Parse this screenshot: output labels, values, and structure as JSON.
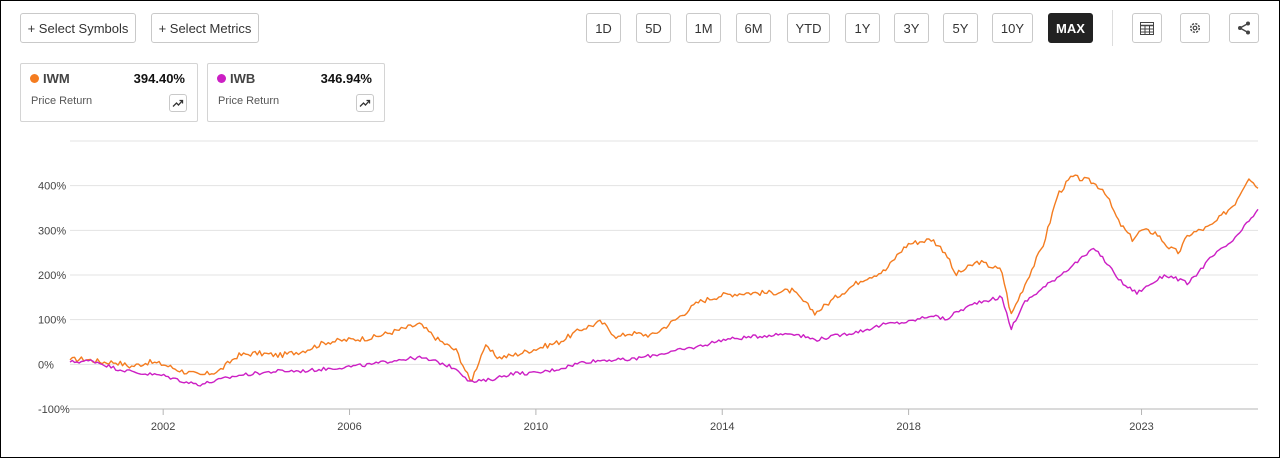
{
  "toolbar": {
    "select_symbols": "+ Select Symbols",
    "select_metrics": "+ Select Metrics",
    "ranges": [
      "1D",
      "5D",
      "1M",
      "6M",
      "YTD",
      "1Y",
      "3Y",
      "5Y",
      "10Y",
      "MAX"
    ],
    "active_range": "MAX",
    "icons": [
      "table-icon",
      "gear-icon",
      "share-icon"
    ]
  },
  "cards": [
    {
      "symbol": "IWM",
      "value": "394.40%",
      "metric": "Price Return",
      "color": "#f47c20"
    },
    {
      "symbol": "IWB",
      "value": "346.94%",
      "metric": "Price Return",
      "color": "#cc1fc4"
    }
  ],
  "chart_data": {
    "type": "line",
    "xlim": [
      2000.0,
      2025.5
    ],
    "ylim": [
      -100,
      500
    ],
    "x_ticks": [
      2002,
      2006,
      2010,
      2014,
      2018,
      2023
    ],
    "x_tick_labels": [
      "2002",
      "2006",
      "2010",
      "2014",
      "2018",
      "2023"
    ],
    "y_ticks": [
      -100,
      0,
      100,
      200,
      300,
      400
    ],
    "y_tick_labels": [
      "-100%",
      "0%",
      "100%",
      "200%",
      "300%",
      "400%"
    ],
    "grid": "horizontal",
    "series": [
      {
        "name": "IWM",
        "color": "#f47c20",
        "x": [
          2000.0,
          2000.3,
          2000.7,
          2001.0,
          2001.3,
          2001.7,
          2002.0,
          2002.4,
          2002.8,
          2003.2,
          2003.6,
          2004.0,
          2004.5,
          2005.0,
          2005.5,
          2006.0,
          2006.5,
          2007.0,
          2007.5,
          2007.9,
          2008.3,
          2008.6,
          2008.9,
          2009.2,
          2009.5,
          2010.0,
          2010.5,
          2011.0,
          2011.4,
          2011.75,
          2012.0,
          2012.5,
          2013.0,
          2013.5,
          2014.0,
          2014.5,
          2015.0,
          2015.5,
          2016.0,
          2016.5,
          2017.0,
          2017.5,
          2017.8,
          2018.0,
          2018.5,
          2018.8,
          2019.0,
          2019.5,
          2020.0,
          2020.2,
          2020.5,
          2020.9,
          2021.2,
          2021.5,
          2021.9,
          2022.2,
          2022.5,
          2022.8,
          2023.0,
          2023.3,
          2023.6,
          2023.8,
          2024.0,
          2024.5,
          2025.0,
          2025.3,
          2025.5
        ],
        "values": [
          10,
          12,
          5,
          5,
          -5,
          5,
          0,
          -15,
          -25,
          -15,
          20,
          25,
          20,
          30,
          50,
          55,
          60,
          75,
          90,
          55,
          30,
          -40,
          40,
          15,
          20,
          35,
          50,
          80,
          95,
          60,
          70,
          65,
          100,
          140,
          155,
          160,
          160,
          165,
          115,
          155,
          190,
          210,
          250,
          270,
          280,
          250,
          200,
          230,
          210,
          110,
          180,
          270,
          380,
          420,
          410,
          390,
          320,
          280,
          300,
          295,
          260,
          250,
          290,
          310,
          360,
          420,
          394
        ]
      },
      {
        "name": "IWB",
        "color": "#cc1fc4",
        "x": [
          2000.0,
          2000.5,
          2001.0,
          2001.5,
          2002.0,
          2002.5,
          2002.8,
          2003.2,
          2003.6,
          2004.0,
          2004.5,
          2005.0,
          2005.5,
          2006.0,
          2006.5,
          2007.0,
          2007.5,
          2007.9,
          2008.3,
          2008.6,
          2009.0,
          2009.5,
          2010.0,
          2010.5,
          2011.0,
          2011.5,
          2012.0,
          2012.5,
          2013.0,
          2013.5,
          2014.0,
          2014.5,
          2015.0,
          2015.5,
          2016.0,
          2016.5,
          2017.0,
          2017.5,
          2018.0,
          2018.5,
          2018.8,
          2019.0,
          2019.5,
          2020.0,
          2020.2,
          2020.5,
          2021.0,
          2021.5,
          2022.0,
          2022.3,
          2022.6,
          2022.9,
          2023.2,
          2023.5,
          2023.8,
          2024.0,
          2024.5,
          2025.0,
          2025.3,
          2025.5
        ],
        "values": [
          5,
          8,
          -10,
          -20,
          -25,
          -40,
          -45,
          -35,
          -25,
          -20,
          -15,
          -15,
          -10,
          -5,
          0,
          10,
          15,
          5,
          -10,
          -40,
          -35,
          -20,
          -20,
          -10,
          5,
          10,
          10,
          20,
          30,
          40,
          55,
          60,
          65,
          70,
          55,
          65,
          75,
          90,
          95,
          110,
          100,
          115,
          140,
          150,
          80,
          140,
          180,
          220,
          260,
          220,
          180,
          160,
          180,
          200,
          190,
          180,
          240,
          280,
          320,
          347
        ]
      }
    ]
  }
}
